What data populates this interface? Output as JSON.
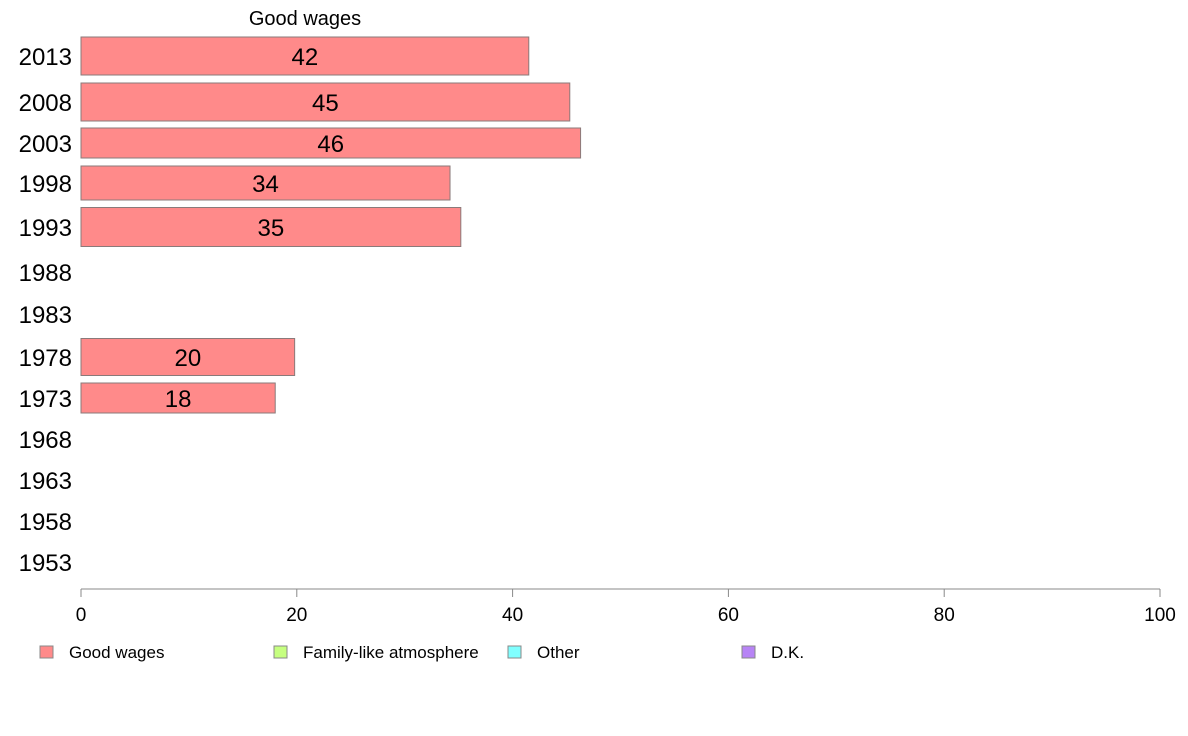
{
  "chart_data": {
    "type": "bar",
    "orientation": "horizontal",
    "title": "Good wages",
    "categories": [
      "2013",
      "2008",
      "2003",
      "1998",
      "1993",
      "1988",
      "1983",
      "1978",
      "1973",
      "1968",
      "1963",
      "1958",
      "1953"
    ],
    "series": [
      {
        "name": "Good wages",
        "color": "#ff8a8a",
        "values": [
          41.5,
          45.3,
          46.3,
          34.2,
          35.2,
          null,
          null,
          19.8,
          18.0,
          null,
          null,
          null,
          null
        ],
        "labels": [
          "42",
          "45",
          "46",
          "34",
          "35",
          null,
          null,
          "20",
          "18",
          null,
          null,
          null,
          null
        ]
      }
    ],
    "xlim": [
      0,
      100
    ],
    "xticks": [
      0,
      20,
      40,
      60,
      80,
      100
    ],
    "xtick_labels": [
      "0",
      "20",
      "40",
      "60",
      "80",
      "100"
    ],
    "grid": false,
    "legend_position": "bottom",
    "legend": [
      {
        "label": "Good wages",
        "color": "#ff8a8a"
      },
      {
        "label": "Family-like atmosphere",
        "color": "#c6ff80"
      },
      {
        "label": "Other",
        "color": "#80ffff"
      },
      {
        "label": "D.K.",
        "color": "#b784f5"
      }
    ]
  }
}
